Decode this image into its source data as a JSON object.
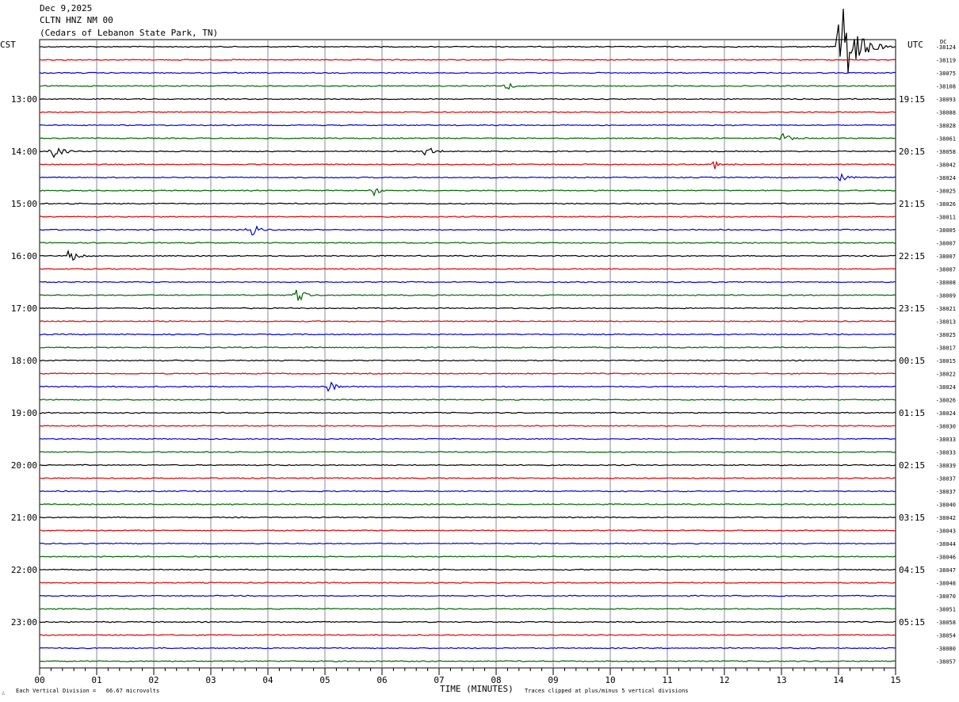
{
  "header": {
    "date": "Dec 9,2025",
    "station": "CLTN HNZ NM 00",
    "location": "(Cedars of Lebanon State Park, TN)"
  },
  "left_zone": "CST",
  "right_zone": "UTC",
  "dc_label": "DC",
  "footer": {
    "scale_label": "Each Vertical Division =   66.67 microvolts",
    "clip_note": "Traces clipped at plus/minus 5 vertical divisions",
    "corner_mark": "∴"
  },
  "chart_data": {
    "type": "line",
    "xlabel": "TIME (MINUTES)",
    "x_ticks": [
      "00",
      "01",
      "02",
      "03",
      "04",
      "05",
      "06",
      "07",
      "08",
      "09",
      "10",
      "11",
      "12",
      "13",
      "14",
      "15"
    ],
    "xlim": [
      0,
      15
    ],
    "rows_per_hour": 4,
    "trace_colors": [
      "#000000",
      "#dd0000",
      "#0000dd",
      "#006600"
    ],
    "left_hour_labels": [
      "13:00",
      "14:00",
      "15:00",
      "16:00",
      "17:00",
      "18:00",
      "19:00",
      "20:00",
      "21:00",
      "22:00",
      "23:00"
    ],
    "right_hour_labels": [
      "19:15",
      "20:15",
      "21:15",
      "22:15",
      "23:15",
      "00:15",
      "01:15",
      "02:15",
      "03:15",
      "04:15",
      "05:15"
    ],
    "dc_offsets": [
      "-38124",
      "-38119",
      "-38075",
      "-38108",
      "-38093",
      "-38088",
      "-38028",
      "-38061",
      "-38058",
      "-38042",
      "-38024",
      "-38025",
      "-38026",
      "-38011",
      "-38005",
      "-38007",
      "-38007",
      "-38007",
      "-38008",
      "-38009",
      "-38021",
      "-38013",
      "-38025",
      "-38017",
      "-38015",
      "-38022",
      "-38024",
      "-38026",
      "-38024",
      "-38030",
      "-38033",
      "-38033",
      "-38039",
      "-38037",
      "-38037",
      "-38040",
      "-38042",
      "-38043",
      "-38044",
      "-38046",
      "-38047",
      "-38048",
      "-38070",
      "-38051",
      "-38058",
      "-38054",
      "-38080",
      "-38057"
    ],
    "events": [
      {
        "row": 0,
        "minute": 14.0,
        "amplitude": "clipped"
      },
      {
        "row": 3,
        "minute": 8.1,
        "amplitude": "small"
      },
      {
        "row": 7,
        "minute": 13.0,
        "amplitude": "small"
      },
      {
        "row": 8,
        "minute": 0.2,
        "amplitude": "medium"
      },
      {
        "row": 8,
        "minute": 6.75,
        "amplitude": "small"
      },
      {
        "row": 9,
        "minute": 11.8,
        "amplitude": "small"
      },
      {
        "row": 10,
        "minute": 14.0,
        "amplitude": "small"
      },
      {
        "row": 11,
        "minute": 5.8,
        "amplitude": "small"
      },
      {
        "row": 14,
        "minute": 3.65,
        "amplitude": "medium"
      },
      {
        "row": 16,
        "minute": 0.5,
        "amplitude": "small"
      },
      {
        "row": 19,
        "minute": 4.45,
        "amplitude": "medium"
      },
      {
        "row": 26,
        "minute": 5.05,
        "amplitude": "small"
      }
    ]
  }
}
